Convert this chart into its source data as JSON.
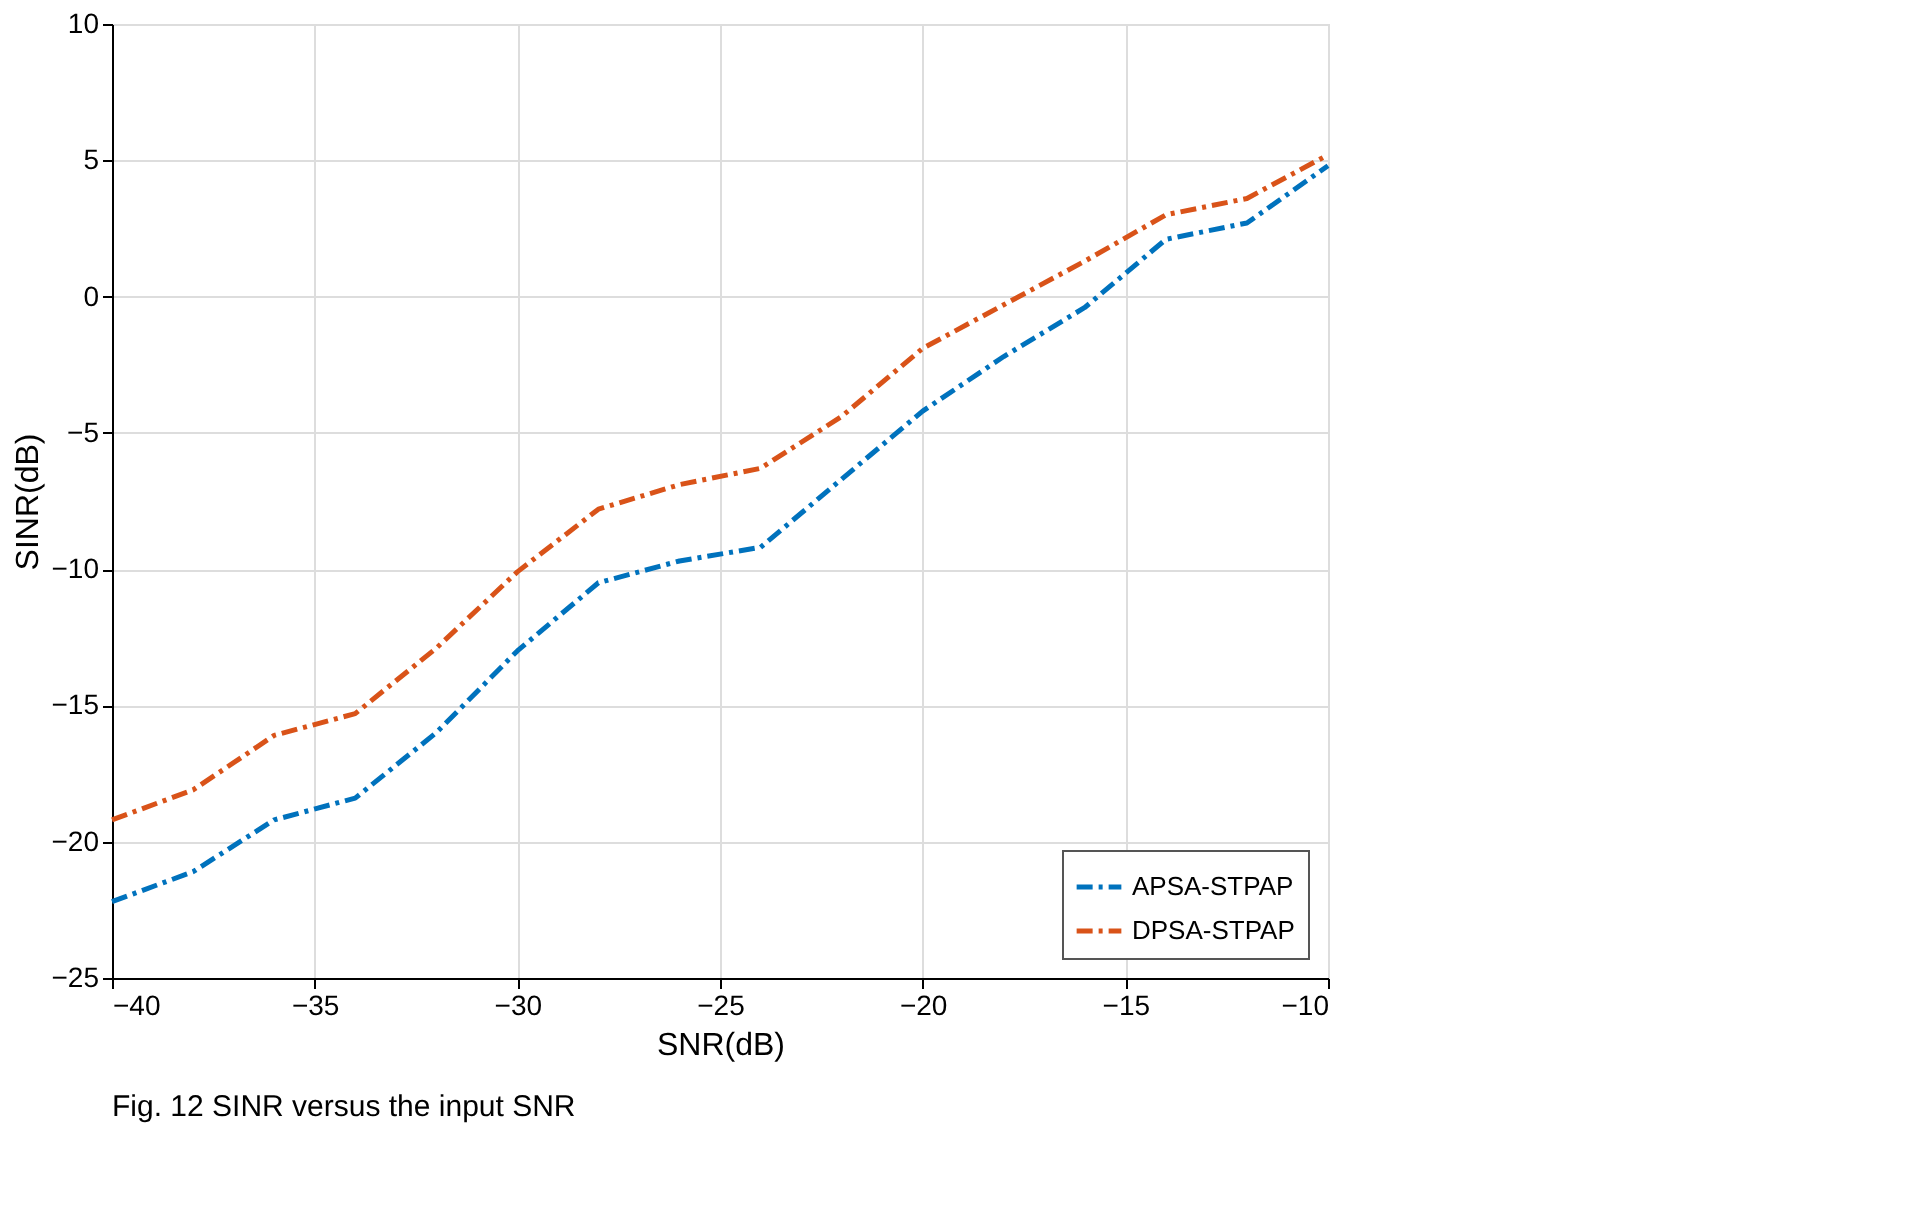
{
  "chart_data": {
    "type": "line",
    "xlabel": "SNR(dB)",
    "ylabel": "SINR(dB)",
    "x": [
      -40,
      -38,
      -36,
      -34,
      -32,
      -30,
      -28,
      -26,
      -24,
      -22,
      -20,
      -18,
      -16,
      -14,
      -12,
      -10
    ],
    "series": [
      {
        "name": "APSA-STPAP",
        "color": "#0072bd",
        "values": [
          -22.2,
          -21.1,
          -19.2,
          -18.4,
          -16,
          -13,
          -10.5,
          -9.7,
          -9.2,
          -6.7,
          -4.2,
          -2.2,
          -0.4,
          2.1,
          2.7,
          4.8
        ]
      },
      {
        "name": "DPSA-STPAP",
        "color": "#d95319",
        "values": [
          -19.2,
          -18.1,
          -16.1,
          -15.3,
          -12.9,
          -10.1,
          -7.8,
          -6.9,
          -6.3,
          -4.4,
          -1.9,
          -0.3,
          1.3,
          3.0,
          3.6,
          5.2
        ]
      }
    ],
    "xlim": [
      -40,
      -10
    ],
    "xticks": [
      -40,
      -35,
      -30,
      -25,
      -20,
      -15,
      -10
    ],
    "ylim": [
      -25,
      10
    ],
    "yticks": [
      -25,
      -20,
      -15,
      -10,
      -5,
      0,
      5,
      10
    ],
    "grid": true,
    "legend": "bottom right",
    "line_style": "dashed",
    "marker": "none",
    "annotations": [
      "Fig. 12 SINR versus the input SNR"
    ]
  }
}
